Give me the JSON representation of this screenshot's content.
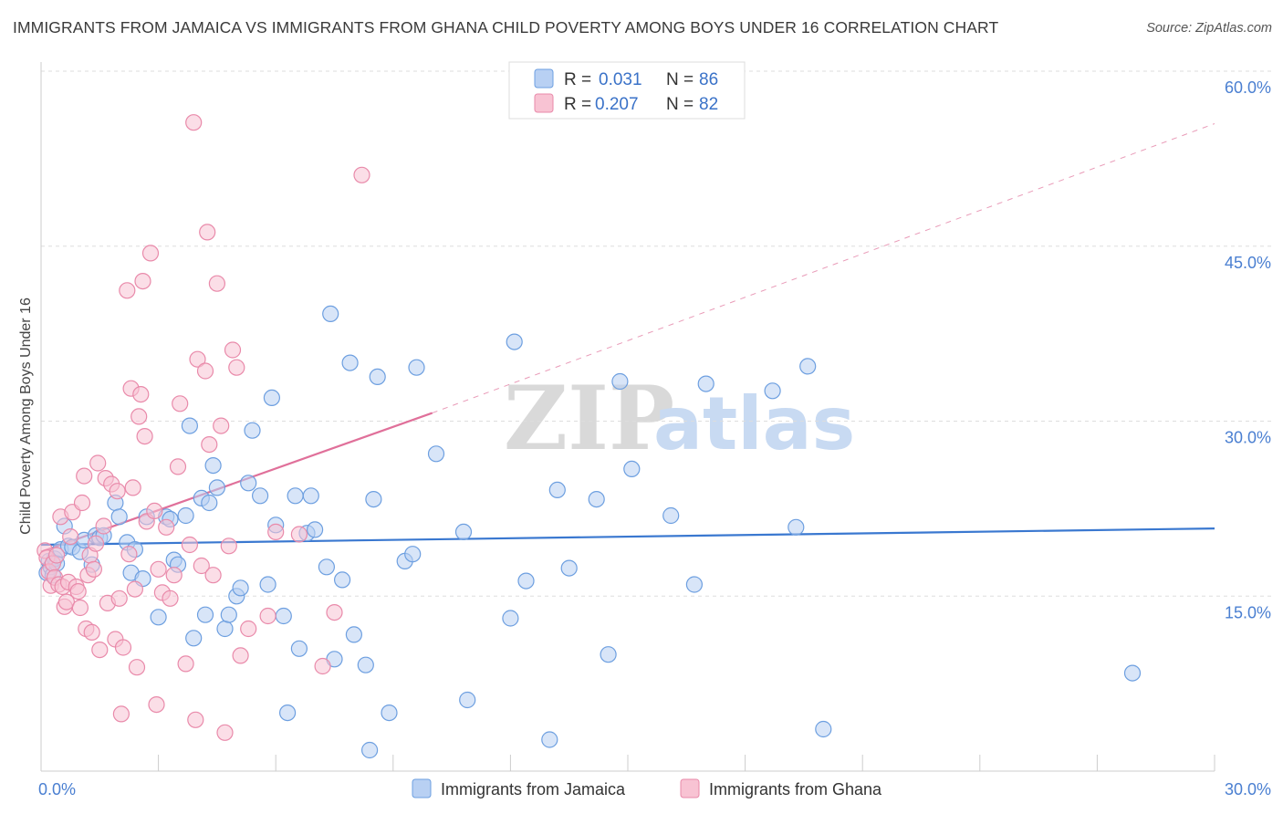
{
  "title": "IMMIGRANTS FROM JAMAICA VS IMMIGRANTS FROM GHANA CHILD POVERTY AMONG BOYS UNDER 16 CORRELATION CHART",
  "source": "Source: ZipAtlas.com",
  "watermark": {
    "zip": "ZIP",
    "atlas": "atlas"
  },
  "colors": {
    "jamaica_fill": "#b8d0f3",
    "jamaica_stroke": "#6d9fe0",
    "jamaica_line": "#3a78d0",
    "ghana_fill": "#f8c3d3",
    "ghana_stroke": "#e98aaa",
    "ghana_line": "#e0709a",
    "grid": "#dddddd",
    "tick_text": "#4a7fd1"
  },
  "legend": {
    "rows": [
      {
        "r_label": "R =",
        "r_value": "0.031",
        "n_label": "N =",
        "n_value": "86"
      },
      {
        "r_label": "R =",
        "r_value": "0.207",
        "n_label": "N =",
        "n_value": "82"
      }
    ]
  },
  "chart_data": {
    "type": "scatter",
    "title": "IMMIGRANTS FROM JAMAICA VS IMMIGRANTS FROM GHANA CHILD POVERTY AMONG BOYS UNDER 16 CORRELATION CHART",
    "xlabel": "",
    "ylabel": "Child Poverty Among Boys Under 16",
    "xlim": [
      0,
      30
    ],
    "ylim": [
      0,
      60
    ],
    "x_tick_labels": [
      "0.0%",
      "30.0%"
    ],
    "y_tick_labels": [
      "15.0%",
      "30.0%",
      "45.0%",
      "60.0%"
    ],
    "y_ticks": [
      15,
      30,
      45,
      60
    ],
    "x_minor_ticks": [
      0,
      3,
      6,
      9,
      12,
      15,
      18,
      21,
      24,
      27,
      30
    ],
    "series": [
      {
        "name": "Immigrants from Jamaica",
        "r": 0.031,
        "n": 86,
        "trend": {
          "x": [
            0,
            30
          ],
          "y": [
            19.4,
            20.8
          ],
          "dashed_extension": false
        },
        "points": [
          [
            0.15,
            17.0
          ],
          [
            0.2,
            18.0
          ],
          [
            0.25,
            17.5
          ],
          [
            0.3,
            16.8
          ],
          [
            0.35,
            18.2
          ],
          [
            0.4,
            17.8
          ],
          [
            0.5,
            19.0
          ],
          [
            0.6,
            21.0
          ],
          [
            0.7,
            19.3
          ],
          [
            0.8,
            19.2
          ],
          [
            1.0,
            18.8
          ],
          [
            1.1,
            19.8
          ],
          [
            1.3,
            17.7
          ],
          [
            1.4,
            20.2
          ],
          [
            1.5,
            20.0
          ],
          [
            1.6,
            20.2
          ],
          [
            1.9,
            23.0
          ],
          [
            2.0,
            21.8
          ],
          [
            2.2,
            19.6
          ],
          [
            2.3,
            17.0
          ],
          [
            2.4,
            19.0
          ],
          [
            2.6,
            16.5
          ],
          [
            2.7,
            21.8
          ],
          [
            3.0,
            13.2
          ],
          [
            3.2,
            21.8
          ],
          [
            3.3,
            21.6
          ],
          [
            3.4,
            18.1
          ],
          [
            3.5,
            17.7
          ],
          [
            3.7,
            21.9
          ],
          [
            3.8,
            29.6
          ],
          [
            3.9,
            11.4
          ],
          [
            4.1,
            23.4
          ],
          [
            4.2,
            13.4
          ],
          [
            4.3,
            23.0
          ],
          [
            4.4,
            26.2
          ],
          [
            4.5,
            24.3
          ],
          [
            4.7,
            12.2
          ],
          [
            4.8,
            13.4
          ],
          [
            5.0,
            15.0
          ],
          [
            5.1,
            15.7
          ],
          [
            5.3,
            24.7
          ],
          [
            5.4,
            29.2
          ],
          [
            5.6,
            23.6
          ],
          [
            5.8,
            16.0
          ],
          [
            5.9,
            32.0
          ],
          [
            6.0,
            21.1
          ],
          [
            6.2,
            13.3
          ],
          [
            6.3,
            5.0
          ],
          [
            6.5,
            23.6
          ],
          [
            6.6,
            10.5
          ],
          [
            6.8,
            20.4
          ],
          [
            6.9,
            23.6
          ],
          [
            7.0,
            20.7
          ],
          [
            7.3,
            17.5
          ],
          [
            7.4,
            39.2
          ],
          [
            7.5,
            9.6
          ],
          [
            7.7,
            16.4
          ],
          [
            7.9,
            35.0
          ],
          [
            8.0,
            11.7
          ],
          [
            8.3,
            9.1
          ],
          [
            8.4,
            1.8
          ],
          [
            8.5,
            23.3
          ],
          [
            8.6,
            33.8
          ],
          [
            8.9,
            5.0
          ],
          [
            9.3,
            18.0
          ],
          [
            9.5,
            18.6
          ],
          [
            9.6,
            34.6
          ],
          [
            10.1,
            27.2
          ],
          [
            10.8,
            20.5
          ],
          [
            10.9,
            6.1
          ],
          [
            12.0,
            13.1
          ],
          [
            12.1,
            36.8
          ],
          [
            12.4,
            16.3
          ],
          [
            13.0,
            2.7
          ],
          [
            13.2,
            24.1
          ],
          [
            13.5,
            17.4
          ],
          [
            14.2,
            23.3
          ],
          [
            14.5,
            10.0
          ],
          [
            14.8,
            33.4
          ],
          [
            15.1,
            25.9
          ],
          [
            16.1,
            21.9
          ],
          [
            16.7,
            16.0
          ],
          [
            17.0,
            33.2
          ],
          [
            18.7,
            32.6
          ],
          [
            19.3,
            20.9
          ],
          [
            19.6,
            34.7
          ],
          [
            20.0,
            3.6
          ],
          [
            27.9,
            8.4
          ]
        ]
      },
      {
        "name": "Immigrants from Ghana",
        "r": 0.207,
        "n": 82,
        "trend": {
          "x": [
            0,
            10
          ],
          "y": [
            18.8,
            30.7
          ],
          "dashed_extension": true,
          "dashed_to": [
            30,
            55.5
          ]
        },
        "points": [
          [
            0.1,
            18.9
          ],
          [
            0.15,
            18.3
          ],
          [
            0.2,
            17.1
          ],
          [
            0.25,
            15.9
          ],
          [
            0.3,
            17.8
          ],
          [
            0.35,
            16.6
          ],
          [
            0.4,
            18.5
          ],
          [
            0.45,
            16.0
          ],
          [
            0.5,
            21.8
          ],
          [
            0.55,
            15.8
          ],
          [
            0.6,
            14.1
          ],
          [
            0.65,
            14.5
          ],
          [
            0.7,
            16.2
          ],
          [
            0.75,
            20.1
          ],
          [
            0.8,
            22.2
          ],
          [
            0.9,
            15.8
          ],
          [
            0.95,
            15.4
          ],
          [
            1.0,
            14.0
          ],
          [
            1.05,
            23.0
          ],
          [
            1.1,
            25.3
          ],
          [
            1.15,
            12.2
          ],
          [
            1.2,
            16.8
          ],
          [
            1.25,
            18.5
          ],
          [
            1.3,
            11.9
          ],
          [
            1.35,
            17.3
          ],
          [
            1.4,
            19.5
          ],
          [
            1.45,
            26.4
          ],
          [
            1.5,
            10.4
          ],
          [
            1.6,
            21.0
          ],
          [
            1.65,
            25.1
          ],
          [
            1.7,
            14.4
          ],
          [
            1.8,
            24.6
          ],
          [
            1.9,
            11.3
          ],
          [
            1.95,
            24.0
          ],
          [
            2.0,
            14.8
          ],
          [
            2.05,
            4.9
          ],
          [
            2.1,
            10.6
          ],
          [
            2.2,
            41.2
          ],
          [
            2.25,
            18.6
          ],
          [
            2.3,
            32.8
          ],
          [
            2.35,
            24.3
          ],
          [
            2.4,
            15.6
          ],
          [
            2.45,
            8.9
          ],
          [
            2.5,
            30.4
          ],
          [
            2.55,
            32.3
          ],
          [
            2.6,
            42.0
          ],
          [
            2.65,
            28.7
          ],
          [
            2.7,
            21.4
          ],
          [
            2.8,
            44.4
          ],
          [
            2.9,
            22.3
          ],
          [
            2.95,
            5.7
          ],
          [
            3.0,
            17.3
          ],
          [
            3.1,
            15.3
          ],
          [
            3.2,
            20.9
          ],
          [
            3.3,
            14.8
          ],
          [
            3.4,
            16.8
          ],
          [
            3.5,
            26.1
          ],
          [
            3.55,
            31.5
          ],
          [
            3.7,
            9.2
          ],
          [
            3.8,
            19.4
          ],
          [
            3.9,
            55.6
          ],
          [
            3.95,
            4.4
          ],
          [
            4.0,
            35.3
          ],
          [
            4.1,
            17.6
          ],
          [
            4.2,
            34.3
          ],
          [
            4.25,
            46.2
          ],
          [
            4.3,
            28.0
          ],
          [
            4.4,
            16.8
          ],
          [
            4.5,
            41.8
          ],
          [
            4.6,
            29.6
          ],
          [
            4.7,
            3.3
          ],
          [
            4.8,
            19.3
          ],
          [
            4.9,
            36.1
          ],
          [
            5.0,
            34.6
          ],
          [
            5.1,
            9.9
          ],
          [
            5.3,
            12.2
          ],
          [
            5.8,
            13.3
          ],
          [
            6.0,
            20.5
          ],
          [
            6.6,
            20.3
          ],
          [
            7.2,
            9.0
          ],
          [
            7.5,
            13.6
          ],
          [
            8.2,
            51.1
          ]
        ]
      }
    ],
    "legend": [
      "Immigrants from Jamaica",
      "Immigrants from Ghana"
    ],
    "legend_position": "top-center"
  }
}
